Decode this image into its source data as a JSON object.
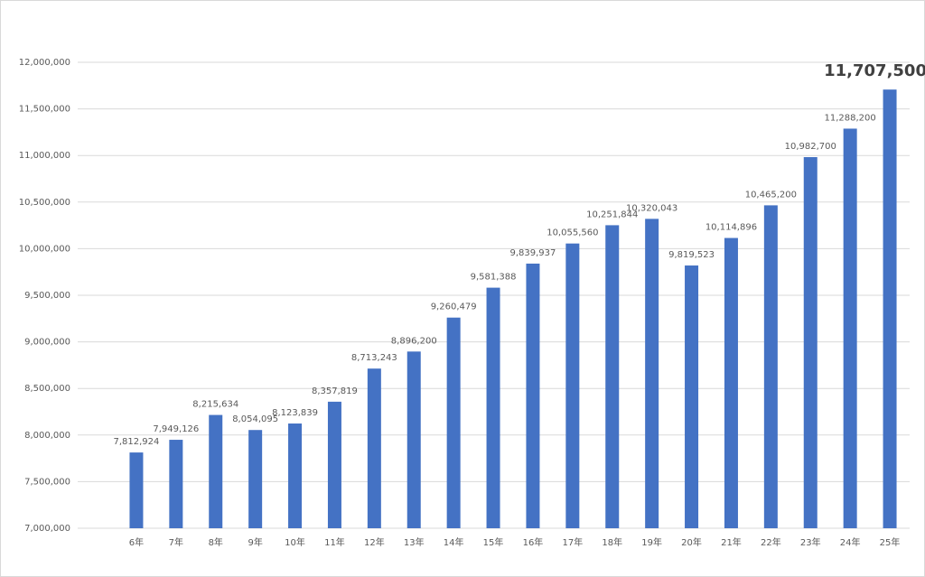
{
  "chart_data": {
    "type": "bar",
    "categories": [
      "6年",
      "7年",
      "8年",
      "9年",
      "10年",
      "11年",
      "12年",
      "13年",
      "14年",
      "15年",
      "16年",
      "17年",
      "18年",
      "19年",
      "20年",
      "21年",
      "22年",
      "23年",
      "24年",
      "25年"
    ],
    "values": [
      7812924,
      7949126,
      8215634,
      8054095,
      8123839,
      8357819,
      8713243,
      8896200,
      9260479,
      9581388,
      9839937,
      10055560,
      10251844,
      10320043,
      9819523,
      10114896,
      10465200,
      10982700,
      11288200,
      11707500
    ],
    "value_labels": [
      "7,812,924",
      "7,949,126",
      "8,215,634",
      "8,054,095",
      "8,123,839",
      "8,357,819",
      "8,713,243",
      "8,896,200",
      "9,260,479",
      "9,581,388",
      "9,839,937",
      "10,055,560",
      "10,251,844",
      "10,320,043",
      "9,819,523",
      "10,114,896",
      "10,465,200",
      "10,982,700",
      "11,288,200",
      "11,707,500"
    ],
    "color": "#4472c4",
    "ylim": [
      7000000,
      12000000
    ],
    "yticks": [
      {
        "value": 7000000,
        "label": "7,000,000"
      },
      {
        "value": 7500000,
        "label": "7,500,000"
      },
      {
        "value": 8000000,
        "label": "8,000,000"
      },
      {
        "value": 8500000,
        "label": "8,500,000"
      },
      {
        "value": 9000000,
        "label": "9,000,000"
      },
      {
        "value": 9500000,
        "label": "9,500,000"
      },
      {
        "value": 10000000,
        "label": "10,000,000"
      },
      {
        "value": 10500000,
        "label": "10,500,000"
      },
      {
        "value": 11000000,
        "label": "11,000,000"
      },
      {
        "value": 11500000,
        "label": "11,500,000"
      },
      {
        "value": 12000000,
        "label": "12,000,000"
      }
    ],
    "grid": true
  }
}
